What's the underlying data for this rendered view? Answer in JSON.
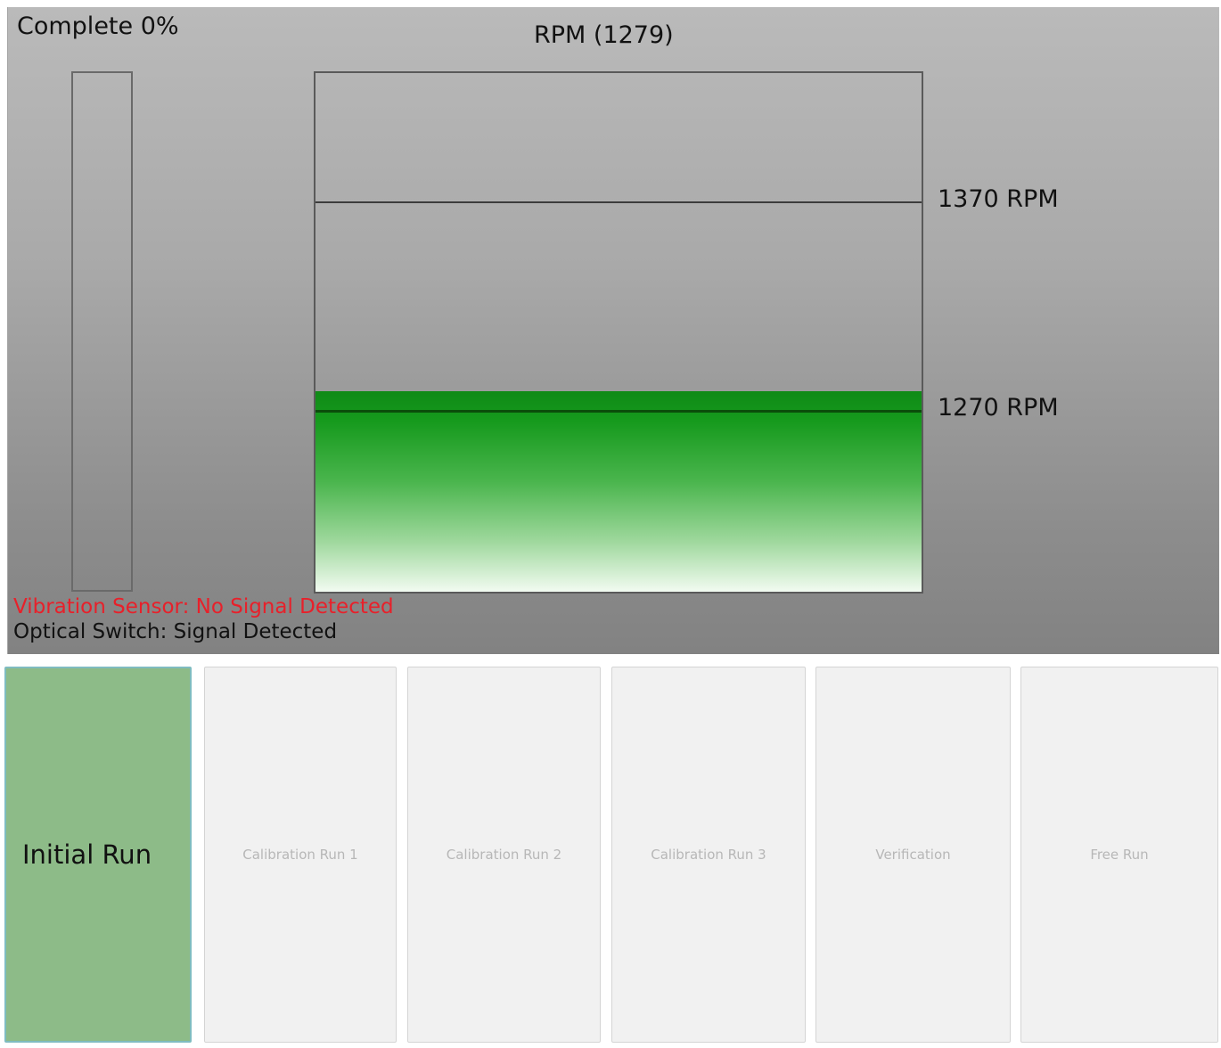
{
  "status": {
    "complete_label": "Complete 0%",
    "complete_fraction": 0.0,
    "rpm_title": "RPM (1279)",
    "vibration_sensor": "Vibration Sensor: No Signal Detected",
    "optical_switch": "Optical Switch: Signal Detected"
  },
  "rpm_gauge": {
    "current_rpm": 1279,
    "upper_label": "1370 RPM",
    "upper_rpm": 1370,
    "lower_label": "1270 RPM",
    "lower_rpm": 1270,
    "fill_color": "#169a1d"
  },
  "colors": {
    "alert_text": "#e8202a",
    "active_button": "#8dbb88",
    "inactive_button": "#f1f1f1"
  },
  "runs": [
    {
      "label": "Initial Run",
      "active": true
    },
    {
      "label": "Calibration Run 1",
      "active": false
    },
    {
      "label": "Calibration Run 2",
      "active": false
    },
    {
      "label": "Calibration Run 3",
      "active": false
    },
    {
      "label": "Verification",
      "active": false
    },
    {
      "label": "Free Run",
      "active": false
    }
  ]
}
